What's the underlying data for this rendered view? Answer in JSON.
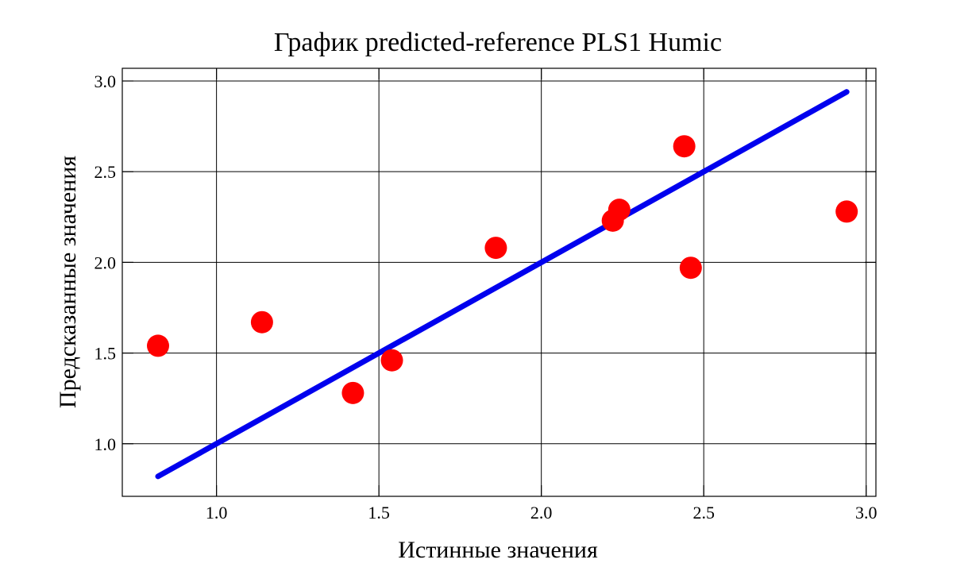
{
  "chart_data": {
    "type": "scatter",
    "title": "График predicted-reference PLS1 Humic",
    "xlabel": "Истинные значения",
    "ylabel": "Предсказанные значения",
    "xlim": [
      0.71,
      3.03
    ],
    "ylim": [
      0.71,
      3.07
    ],
    "xticks": [
      1.0,
      1.5,
      2.0,
      2.5,
      3.0
    ],
    "yticks": [
      1.0,
      1.5,
      2.0,
      2.5,
      3.0
    ],
    "xtick_labels": [
      "1.0",
      "1.5",
      "2.0",
      "2.5",
      "3.0"
    ],
    "ytick_labels": [
      "1.0",
      "1.5",
      "2.0",
      "2.5",
      "3.0"
    ],
    "grid": true,
    "point_color": "#ff0000",
    "line_color": "#0000ee",
    "points": {
      "x": [
        0.82,
        1.14,
        1.42,
        1.54,
        1.86,
        2.22,
        2.24,
        2.44,
        2.46,
        2.94
      ],
      "y": [
        1.54,
        1.67,
        1.28,
        1.46,
        2.08,
        2.23,
        2.29,
        2.64,
        1.97,
        2.28
      ]
    },
    "line": {
      "x": [
        0.82,
        2.94
      ],
      "y": [
        0.82,
        2.94
      ]
    }
  }
}
